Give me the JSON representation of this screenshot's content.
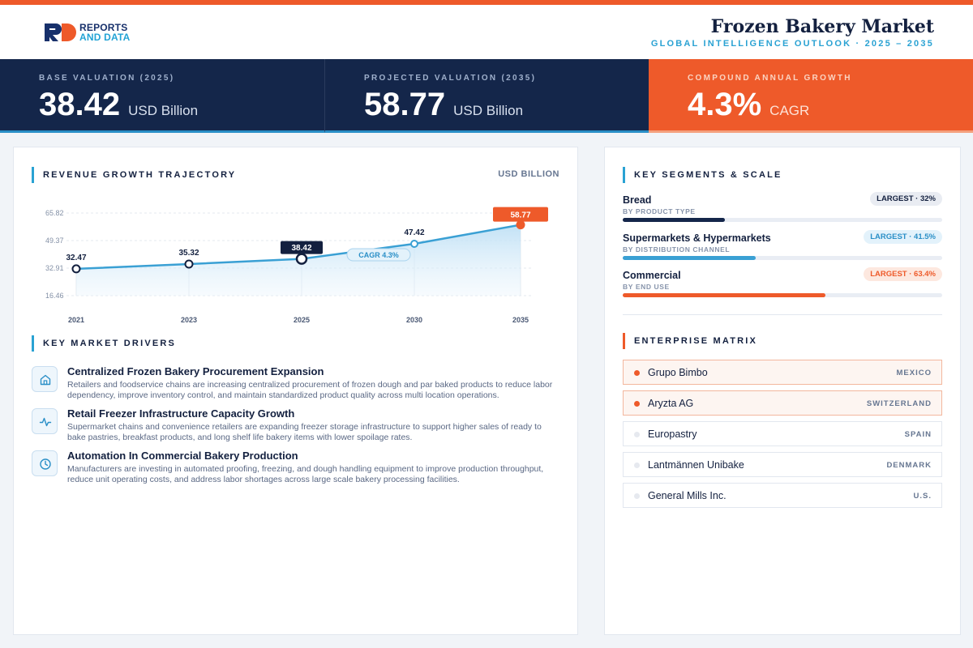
{
  "brand": {
    "line1": "REPORTS",
    "line2": "AND DATA"
  },
  "header": {
    "title": "Frozen Bakery Market",
    "subtitle": "GLOBAL INTELLIGENCE OUTLOOK  ·  2025 – 2035"
  },
  "kpis": [
    {
      "label": "BASE VALUATION (2025)",
      "value": "38.42",
      "unit": "USD Billion"
    },
    {
      "label": "PROJECTED VALUATION (2035)",
      "value": "58.77",
      "unit": "USD Billion"
    },
    {
      "label": "COMPOUND ANNUAL GROWTH",
      "value": "4.3%",
      "unit": "CAGR"
    }
  ],
  "chart_section": {
    "title": "REVENUE GROWTH TRAJECTORY",
    "unit": "USD BILLION"
  },
  "chart_data": {
    "type": "area",
    "title": "REVENUE GROWTH TRAJECTORY",
    "ylabel": "USD BILLION",
    "x": [
      "2021",
      "2023",
      "2025",
      "2030",
      "2035"
    ],
    "values": [
      32.47,
      35.32,
      38.42,
      47.42,
      58.77
    ],
    "value_labels": [
      "32.47",
      "35.32",
      "38.42",
      "47.42",
      "58.77"
    ],
    "y_ticks": [
      "65.82",
      "49.37",
      "32.91",
      "16.46"
    ],
    "ylim": [
      16.46,
      65.82
    ],
    "annotation": "CAGR 4.3%",
    "grid": true,
    "colors": {
      "line": "#3aa0d4",
      "area": "#d6ebf8",
      "highlight": "#13203f",
      "end": "#ee5a2a"
    }
  },
  "drivers_section": {
    "title": "KEY MARKET DRIVERS"
  },
  "drivers": [
    {
      "icon": "home-icon",
      "title": "Centralized Frozen Bakery Procurement Expansion",
      "desc": "Retailers and foodservice chains are increasing centralized procurement of frozen dough and par baked products to reduce labor dependency, improve inventory control, and maintain standardized product quality across multi location operations."
    },
    {
      "icon": "activity-icon",
      "title": "Retail Freezer Infrastructure Capacity Growth",
      "desc": "Supermarket chains and convenience retailers are expanding freezer storage infrastructure to support higher sales of ready to bake pastries, breakfast products, and long shelf life bakery items with lower spoilage rates."
    },
    {
      "icon": "clock-icon",
      "title": "Automation In Commercial Bakery Production",
      "desc": "Manufacturers are investing in automated proofing, freezing, and dough handling equipment to improve production throughput, reduce unit operating costs, and address labor shortages across large scale bakery processing facilities."
    }
  ],
  "segments_section": {
    "title": "KEY SEGMENTS & SCALE"
  },
  "segments": [
    {
      "name": "Bread",
      "sub": "BY PRODUCT TYPE",
      "badge": "LARGEST · 32%",
      "share": 32,
      "color": "#14264a",
      "badge_bg": "#e9ecf2",
      "badge_fg": "#13203f"
    },
    {
      "name": "Supermarkets & Hypermarkets",
      "sub": "BY DISTRIBUTION CHANNEL",
      "badge": "LARGEST · 41.5%",
      "share": 41.5,
      "color": "#3aa0d4",
      "badge_bg": "#e3f2fb",
      "badge_fg": "#2a8fc7"
    },
    {
      "name": "Commercial",
      "sub": "BY END USE",
      "badge": "LARGEST · 63.4%",
      "share": 63.4,
      "color": "#ee5a2a",
      "badge_bg": "#fde8df",
      "badge_fg": "#ee5a2a"
    }
  ],
  "enterprise_section": {
    "title": "ENTERPRISE MATRIX"
  },
  "enterprises": [
    {
      "name": "Grupo Bimbo",
      "country": "MEXICO",
      "highlight": true
    },
    {
      "name": "Aryzta AG",
      "country": "SWITZERLAND",
      "highlight": true
    },
    {
      "name": "Europastry",
      "country": "SPAIN",
      "highlight": false
    },
    {
      "name": "Lantmännen Unibake",
      "country": "DENMARK",
      "highlight": false
    },
    {
      "name": "General Mills Inc.",
      "country": "U.S.",
      "highlight": false
    }
  ]
}
